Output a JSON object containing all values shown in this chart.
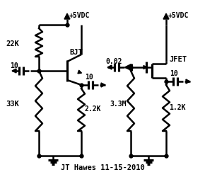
{
  "title": "JT Hawes 11-15-2010",
  "vdc_label": "+5VDC",
  "bjt_label": "BJT",
  "jfet_label": "JFET",
  "r1_label": "22K",
  "r2_label": "33K",
  "r3_label": "2.2K",
  "r4_label": "3.3M",
  "r5_label": "1.2K",
  "c1_label": "10",
  "c2_label": "10",
  "c3_label": "0.02",
  "c4_label": "10",
  "bg_color": "#ffffff",
  "line_color": "#000000",
  "text_color": "#000000",
  "figsize": [
    2.9,
    2.5
  ],
  "dpi": 100
}
